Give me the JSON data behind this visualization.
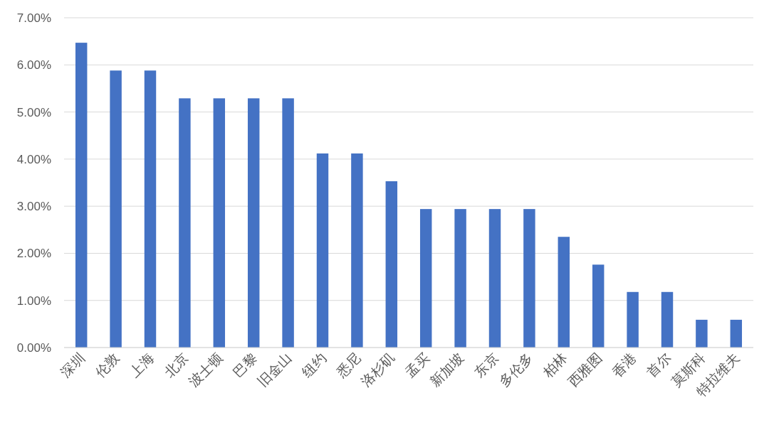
{
  "chart_data": {
    "type": "bar",
    "categories": [
      "深圳",
      "伦敦",
      "上海",
      "北京",
      "波士顿",
      "巴黎",
      "旧金山",
      "纽约",
      "悉尼",
      "洛杉矶",
      "孟买",
      "新加坡",
      "东京",
      "多伦多",
      "柏林",
      "西雅图",
      "香港",
      "首尔",
      "莫斯科",
      "特拉维夫"
    ],
    "values": [
      6.47,
      5.88,
      5.88,
      5.29,
      5.29,
      5.29,
      5.29,
      4.12,
      4.12,
      3.53,
      2.94,
      2.94,
      2.94,
      2.94,
      2.35,
      1.76,
      1.18,
      1.18,
      0.59,
      0.59
    ],
    "color": "#4472c4",
    "ylim": [
      0,
      7
    ],
    "yticks": [
      {
        "value": 0,
        "label": "0.00%"
      },
      {
        "value": 1,
        "label": "1.00%"
      },
      {
        "value": 2,
        "label": "2.00%"
      },
      {
        "value": 3,
        "label": "3.00%"
      },
      {
        "value": 4,
        "label": "4.00%"
      },
      {
        "value": 5,
        "label": "5.00%"
      },
      {
        "value": 6,
        "label": "6.00%"
      },
      {
        "value": 7,
        "label": "7.00%"
      }
    ],
    "grid": "y"
  }
}
